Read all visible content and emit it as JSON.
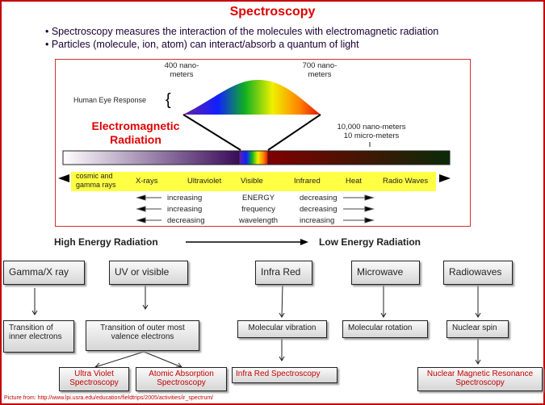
{
  "title": "Spectroscopy",
  "bullets": [
    "• Spectroscopy measures the interaction of the molecules with electromagnetic radiation",
    "• Particles (molecule, ion, atom) can interact/absorb a quantum of light"
  ],
  "spectrum": {
    "nm400": [
      "400 nano-",
      "meters"
    ],
    "nm700": [
      "700 nano-",
      "meters"
    ],
    "eye": "Human Eye Response",
    "brace": "{",
    "em": [
      "Electromagnetic",
      "Radiation"
    ],
    "nm10000": [
      "10,000 nano-meters",
      "10 micro-meters"
    ],
    "bands": [
      "cosmic and gamma rays",
      "X-rays",
      "Ultraviolet",
      "Visible",
      "Infrared",
      "Heat",
      "Radio Waves"
    ],
    "rows": [
      [
        "increasing",
        "ENERGY",
        "decreasing"
      ],
      [
        "increasing",
        "frequency",
        "decreasing"
      ],
      [
        "decreasing",
        "wavelength",
        "increasing"
      ]
    ]
  },
  "energy": {
    "high": "High Energy Radiation",
    "low": "Low Energy Radiation"
  },
  "headers": [
    "Gamma/X ray",
    "UV or visible",
    "Infra Red",
    "Microwave",
    "Radiowaves"
  ],
  "effects": [
    "Transition of inner electrons",
    "Transition of outer most valence electrons",
    "Molecular vibration",
    "Molecular rotation",
    "Nuclear spin"
  ],
  "techniques": [
    "Ultra Violet Spectroscopy",
    "Atomic Absorption Spectroscopy",
    "Infra Red Spectroscopy",
    "Nuclear Magnetic Resonance Spectroscopy"
  ],
  "credit": "Picture from: http://www.lpi.usra.edu/education/fieldtrips/2005/activities/ir_spectrum/",
  "colors": {
    "title": "#e00000",
    "frame": "#c00000",
    "band": "#ffff44",
    "technique": "#c00000"
  }
}
